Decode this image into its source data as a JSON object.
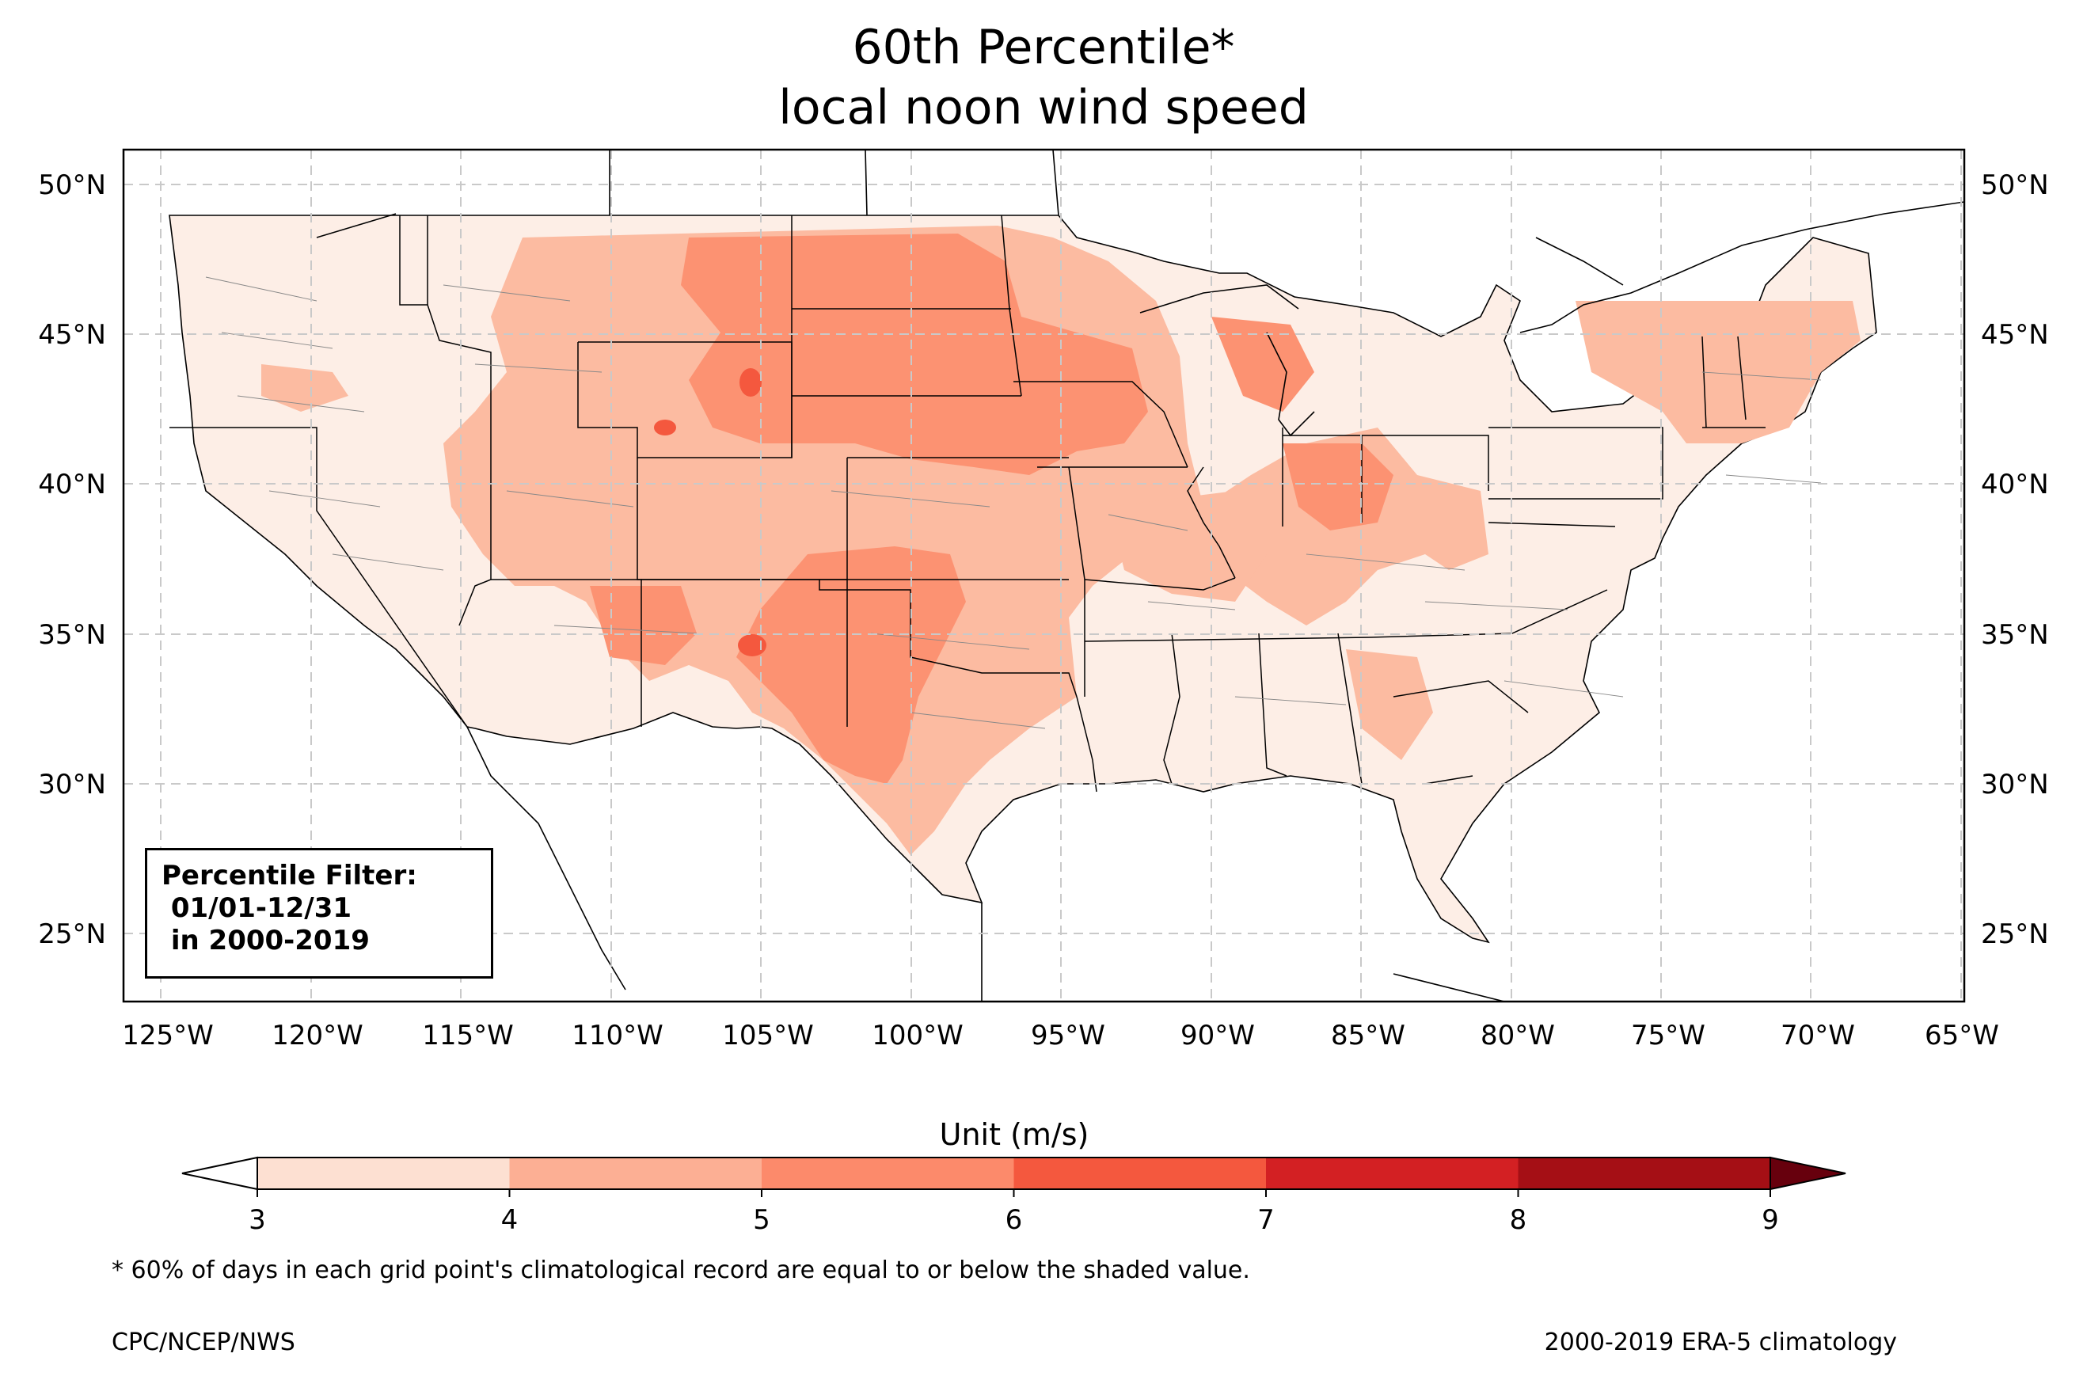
{
  "title_line1": "60th Percentile*",
  "title_line2": "local noon wind speed",
  "map": {
    "lat_labels": [
      "50°N",
      "45°N",
      "40°N",
      "35°N",
      "30°N",
      "25°N"
    ],
    "lon_labels": [
      "125°W",
      "120°W",
      "115°W",
      "110°W",
      "105°W",
      "100°W",
      "95°W",
      "90°W",
      "85°W",
      "80°W",
      "75°W",
      "70°W",
      "65°W"
    ],
    "extent": {
      "lon_min": -126.2,
      "lon_max": -64.7,
      "lat_min": 22.7,
      "lat_max": 51.2
    }
  },
  "filter_box": {
    "line1": "Percentile Filter:",
    "line2": " 01/01-12/31",
    "line3": " in 2000-2019"
  },
  "colorbar": {
    "label": "Unit (m/s)",
    "ticks": [
      "3",
      "4",
      "5",
      "6",
      "7",
      "8",
      "9"
    ],
    "colors": [
      "#fde0d2",
      "#fcaf94",
      "#fc8a6b",
      "#f4583e",
      "#d32023",
      "#a50f15"
    ],
    "under_color": "#ffffff",
    "over_color": "#67000d"
  },
  "footnote": "* 60% of days in each grid point's climatological record are equal to or below the shaded value.",
  "credit_left": "CPC/NCEP/NWS",
  "credit_right": "2000-2019 ERA-5 climatology"
}
